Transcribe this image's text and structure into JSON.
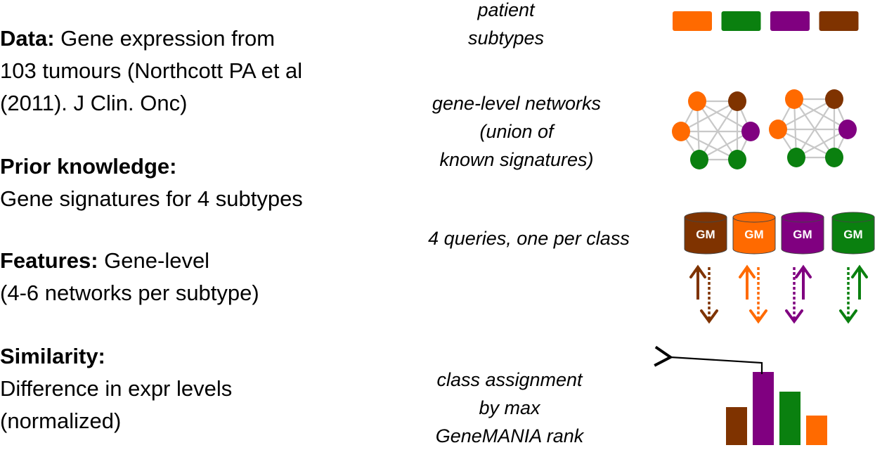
{
  "left": {
    "data": {
      "label": "Data:",
      "line1": " Gene expression from",
      "line2": "103 tumours (Northcott PA et al",
      "line3": "(2011). J Clin. Onc)"
    },
    "prior": {
      "label": "Prior knowledge:",
      "line2": "Gene signatures for 4 subtypes"
    },
    "features": {
      "label": "Features:",
      "line1": " Gene-level",
      "line2": "(4-6 networks per subtype)"
    },
    "similarity": {
      "label": "Similarity:",
      "line2": "Difference in expr levels",
      "line3": "(normalized)"
    }
  },
  "middle": {
    "patient": {
      "line1": "patient",
      "line2": "subtypes"
    },
    "networks": {
      "line1": "gene-level networks",
      "line2": "(union of",
      "line3": "known signatures)"
    },
    "queries": "4 queries, one per class",
    "assignment": {
      "line1": "class assignment",
      "line2": "by max",
      "line3": "GeneMANIA rank"
    }
  },
  "db_label": "GM",
  "colors": {
    "orange": "#ff6a00",
    "green": "#0a800f",
    "purple": "#800080",
    "brown": "#7f3300",
    "edge": "#c8c8c8"
  },
  "subtype_colors": [
    "orange",
    "green",
    "purple",
    "brown"
  ],
  "query_colors": [
    "brown",
    "orange",
    "purple",
    "green"
  ],
  "rank_bars": {
    "colors": [
      "brown",
      "purple",
      "green",
      "orange"
    ],
    "values": [
      54,
      104,
      76,
      42
    ]
  }
}
